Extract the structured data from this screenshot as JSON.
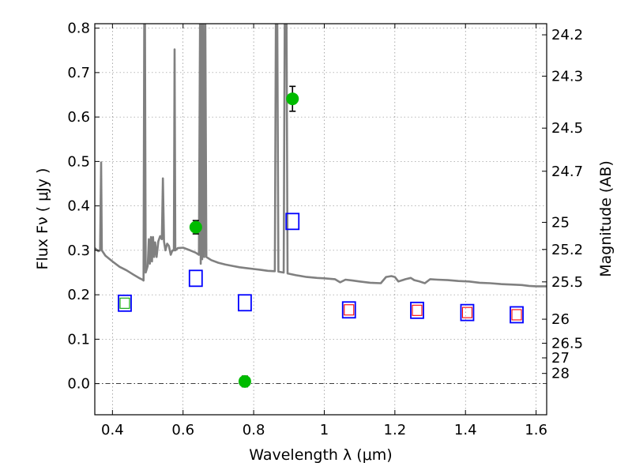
{
  "chart_data": {
    "type": "scatter",
    "xlabel": "Wavelength  λ (μm)",
    "ylabel": "Flux  Fν  ( μJy )",
    "y2label": "Magnitude (AB)",
    "xlim": [
      0.35,
      1.63
    ],
    "ylim": [
      -0.07,
      0.81
    ],
    "xticks": [
      "0.4",
      "0.6",
      "0.8",
      "1",
      "1.2",
      "1.4",
      "1.6"
    ],
    "xtick_values": [
      0.4,
      0.6,
      0.8,
      1.0,
      1.2,
      1.4,
      1.6
    ],
    "yticks": [
      "0.0",
      "0.1",
      "0.2",
      "0.3",
      "0.4",
      "0.5",
      "0.6",
      "0.7",
      "0.8"
    ],
    "ytick_values": [
      0.0,
      0.1,
      0.2,
      0.3,
      0.4,
      0.5,
      0.6,
      0.7,
      0.8
    ],
    "magnitude_ticks": [
      {
        "label": "24.2",
        "flux": 0.785
      },
      {
        "label": "24.3",
        "flux": 0.692
      },
      {
        "label": "24.5",
        "flux": 0.575
      },
      {
        "label": "24.7",
        "flux": 0.478
      },
      {
        "label": "25",
        "flux": 0.363
      },
      {
        "label": "25.2",
        "flux": 0.302
      },
      {
        "label": "25.5",
        "flux": 0.229
      },
      {
        "label": "26",
        "flux": 0.145
      },
      {
        "label": "26.5",
        "flux": 0.091
      },
      {
        "label": "27",
        "flux": 0.058
      },
      {
        "label": "28",
        "flux": 0.023
      }
    ],
    "grid": true,
    "reference_lines": [
      {
        "y": 0.0,
        "style": "dash-dot"
      }
    ],
    "series": [
      {
        "kind": "line",
        "color": "#808080",
        "points": [
          [
            0.35,
            0.305
          ],
          [
            0.36,
            0.298
          ],
          [
            0.365,
            0.3
          ],
          [
            0.368,
            0.498
          ],
          [
            0.37,
            0.3
          ],
          [
            0.38,
            0.288
          ],
          [
            0.4,
            0.275
          ],
          [
            0.42,
            0.263
          ],
          [
            0.44,
            0.255
          ],
          [
            0.46,
            0.245
          ],
          [
            0.475,
            0.238
          ],
          [
            0.485,
            0.234
          ],
          [
            0.488,
            0.232
          ],
          [
            0.49,
            0.81
          ],
          [
            0.492,
            0.81
          ],
          [
            0.494,
            0.25
          ],
          [
            0.5,
            0.265
          ],
          [
            0.503,
            0.325
          ],
          [
            0.506,
            0.27
          ],
          [
            0.509,
            0.33
          ],
          [
            0.512,
            0.275
          ],
          [
            0.515,
            0.33
          ],
          [
            0.518,
            0.285
          ],
          [
            0.521,
            0.318
          ],
          [
            0.525,
            0.285
          ],
          [
            0.53,
            0.32
          ],
          [
            0.535,
            0.332
          ],
          [
            0.54,
            0.325
          ],
          [
            0.543,
            0.462
          ],
          [
            0.546,
            0.32
          ],
          [
            0.55,
            0.3
          ],
          [
            0.555,
            0.315
          ],
          [
            0.56,
            0.31
          ],
          [
            0.565,
            0.29
          ],
          [
            0.57,
            0.3
          ],
          [
            0.574,
            0.3
          ],
          [
            0.576,
            0.752
          ],
          [
            0.578,
            0.3
          ],
          [
            0.585,
            0.305
          ],
          [
            0.6,
            0.306
          ],
          [
            0.62,
            0.3
          ],
          [
            0.635,
            0.295
          ],
          [
            0.645,
            0.29
          ],
          [
            0.648,
            0.81
          ],
          [
            0.65,
            0.27
          ],
          [
            0.652,
            0.81
          ],
          [
            0.654,
            0.28
          ],
          [
            0.657,
            0.81
          ],
          [
            0.66,
            0.285
          ],
          [
            0.663,
            0.81
          ],
          [
            0.666,
            0.285
          ],
          [
            0.68,
            0.278
          ],
          [
            0.7,
            0.272
          ],
          [
            0.72,
            0.268
          ],
          [
            0.74,
            0.265
          ],
          [
            0.76,
            0.262
          ],
          [
            0.78,
            0.26
          ],
          [
            0.8,
            0.258
          ],
          [
            0.82,
            0.256
          ],
          [
            0.84,
            0.254
          ],
          [
            0.86,
            0.253
          ],
          [
            0.863,
            0.81
          ],
          [
            0.867,
            0.81
          ],
          [
            0.87,
            0.252
          ],
          [
            0.885,
            0.25
          ],
          [
            0.888,
            0.81
          ],
          [
            0.893,
            0.81
          ],
          [
            0.896,
            0.248
          ],
          [
            0.92,
            0.244
          ],
          [
            0.95,
            0.24
          ],
          [
            0.98,
            0.238
          ],
          [
            1.0,
            0.237
          ],
          [
            1.03,
            0.235
          ],
          [
            1.045,
            0.228
          ],
          [
            1.06,
            0.234
          ],
          [
            1.08,
            0.232
          ],
          [
            1.1,
            0.23
          ],
          [
            1.13,
            0.227
          ],
          [
            1.16,
            0.226
          ],
          [
            1.175,
            0.24
          ],
          [
            1.19,
            0.242
          ],
          [
            1.2,
            0.24
          ],
          [
            1.21,
            0.23
          ],
          [
            1.23,
            0.235
          ],
          [
            1.245,
            0.238
          ],
          [
            1.255,
            0.233
          ],
          [
            1.27,
            0.23
          ],
          [
            1.285,
            0.226
          ],
          [
            1.3,
            0.235
          ],
          [
            1.32,
            0.234
          ],
          [
            1.35,
            0.233
          ],
          [
            1.38,
            0.231
          ],
          [
            1.41,
            0.23
          ],
          [
            1.44,
            0.227
          ],
          [
            1.47,
            0.226
          ],
          [
            1.5,
            0.224
          ],
          [
            1.53,
            0.223
          ],
          [
            1.56,
            0.222
          ],
          [
            1.58,
            0.22
          ],
          [
            1.6,
            0.219
          ],
          [
            1.63,
            0.219
          ]
        ]
      },
      {
        "kind": "points-with-error",
        "color": "#00bb00",
        "points": [
          {
            "x": 0.636,
            "y": 0.352,
            "err": 0.015
          },
          {
            "x": 0.775,
            "y": 0.005,
            "err": 0.012
          },
          {
            "x": 0.91,
            "y": 0.641,
            "err": 0.028
          }
        ]
      },
      {
        "kind": "open-square",
        "color": "#0000ff",
        "points": [
          {
            "x": 0.435,
            "y": 0.181
          },
          {
            "x": 0.636,
            "y": 0.237
          },
          {
            "x": 0.775,
            "y": 0.182
          },
          {
            "x": 0.91,
            "y": 0.365
          },
          {
            "x": 1.07,
            "y": 0.166
          },
          {
            "x": 1.263,
            "y": 0.165
          },
          {
            "x": 1.405,
            "y": 0.16
          },
          {
            "x": 1.545,
            "y": 0.155
          }
        ]
      },
      {
        "kind": "small-open-square",
        "color": "#00a000",
        "points": [
          {
            "x": 0.435,
            "y": 0.181
          }
        ]
      },
      {
        "kind": "small-open-square",
        "color": "#ff0000",
        "points": [
          {
            "x": 1.07,
            "y": 0.166
          },
          {
            "x": 1.263,
            "y": 0.165
          },
          {
            "x": 1.405,
            "y": 0.16
          },
          {
            "x": 1.545,
            "y": 0.155
          }
        ]
      }
    ]
  }
}
